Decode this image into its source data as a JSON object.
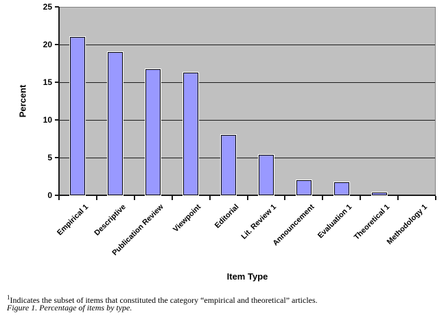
{
  "chart_data": {
    "type": "bar",
    "categories": [
      "Empirical 1",
      "Descriptive",
      "Publication Review",
      "Viewpoint",
      "Editorial",
      "Lit. Review 1",
      "Announcement",
      "Evaluation 1",
      "Theoretical 1",
      "Methodology 1"
    ],
    "values": [
      21,
      19,
      16.7,
      16.3,
      8,
      5.4,
      2,
      1.7,
      0.4,
      0
    ],
    "title": "",
    "xlabel": "Item Type",
    "ylabel": "Percent",
    "ylim": [
      0,
      25
    ],
    "yticks": [
      0,
      5,
      10,
      15,
      20,
      25
    ],
    "grid": "horizontal",
    "legend_position": "none",
    "bar_color": "#9999FF",
    "bar_border_color": "#000000",
    "plot_background_color": "#C0C0C0",
    "gridline_color": "#1a1a1a"
  },
  "footnote": {
    "superscript": "1",
    "text": "Indicates the subset of items that constituted the category “empirical and theoretical” articles."
  },
  "caption": "Figure 1. Percentage of items by type."
}
